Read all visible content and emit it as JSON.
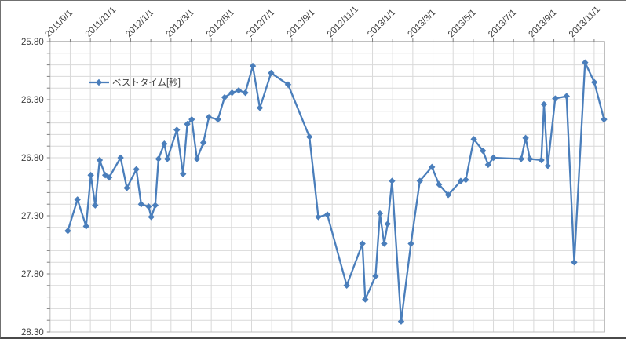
{
  "chart_data": {
    "type": "line",
    "title": "",
    "legend_label": "ベストタイム[秒]",
    "x_axis": {
      "position": "top",
      "tick_labels": [
        "2011/9/1",
        "2011/11/1",
        "2012/1/1",
        "2012/3/1",
        "2012/5/1",
        "2012/7/1",
        "2012/9/1",
        "2012/11/1",
        "2013/1/1",
        "2013/3/1",
        "2013/5/1",
        "2013/7/1",
        "2013/9/1",
        "2013/11/1"
      ],
      "tick_interval_months": 2,
      "gridline_interval_months": 1,
      "label_rotation_deg": 45,
      "axis_span_months": 27.6,
      "x_unit": "months since 2011/9/1"
    },
    "y_axis": {
      "unit": "seconds",
      "min": 25.8,
      "max": 28.3,
      "tick_labels": [
        "25.80",
        "26.30",
        "26.80",
        "27.30",
        "27.80",
        "28.30"
      ],
      "major_step": 0.5,
      "minor_step": 0.1,
      "reversed": true
    },
    "series": [
      {
        "name": "ベストタイム[秒]",
        "color": "#4A7EBB",
        "points": [
          [
            0.88,
            27.43
          ],
          [
            1.36,
            27.16
          ],
          [
            1.79,
            27.39
          ],
          [
            2.02,
            26.95
          ],
          [
            2.24,
            27.21
          ],
          [
            2.46,
            26.82
          ],
          [
            2.74,
            26.95
          ],
          [
            2.93,
            26.97
          ],
          [
            3.5,
            26.8
          ],
          [
            3.81,
            27.06
          ],
          [
            4.28,
            26.9
          ],
          [
            4.52,
            27.2
          ],
          [
            4.89,
            27.22
          ],
          [
            5.02,
            27.31
          ],
          [
            5.22,
            27.21
          ],
          [
            5.38,
            26.81
          ],
          [
            5.67,
            26.68
          ],
          [
            5.82,
            26.81
          ],
          [
            6.29,
            26.56
          ],
          [
            6.6,
            26.94
          ],
          [
            6.81,
            26.51
          ],
          [
            7.03,
            26.47
          ],
          [
            7.29,
            26.81
          ],
          [
            7.61,
            26.67
          ],
          [
            7.88,
            26.45
          ],
          [
            8.33,
            26.47
          ],
          [
            8.66,
            26.28
          ],
          [
            9.03,
            26.24
          ],
          [
            9.36,
            26.22
          ],
          [
            9.69,
            26.24
          ],
          [
            10.06,
            26.01
          ],
          [
            10.41,
            26.37
          ],
          [
            10.97,
            26.07
          ],
          [
            11.81,
            26.17
          ],
          [
            12.87,
            26.62
          ],
          [
            13.31,
            27.31
          ],
          [
            13.76,
            27.29
          ],
          [
            14.72,
            27.9
          ],
          [
            15.5,
            27.54
          ],
          [
            15.64,
            28.02
          ],
          [
            16.15,
            27.82
          ],
          [
            16.37,
            27.28
          ],
          [
            16.58,
            27.54
          ],
          [
            16.75,
            27.37
          ],
          [
            16.97,
            27.0
          ],
          [
            17.42,
            28.21
          ],
          [
            17.91,
            27.54
          ],
          [
            18.35,
            27.0
          ],
          [
            18.95,
            26.88
          ],
          [
            19.3,
            27.03
          ],
          [
            19.76,
            27.12
          ],
          [
            20.38,
            27.0
          ],
          [
            20.63,
            26.99
          ],
          [
            21.03,
            26.64
          ],
          [
            21.48,
            26.74
          ],
          [
            21.74,
            26.86
          ],
          [
            22.0,
            26.8
          ],
          [
            23.38,
            26.81
          ],
          [
            23.6,
            26.63
          ],
          [
            23.81,
            26.81
          ],
          [
            24.38,
            26.82
          ],
          [
            24.51,
            26.34
          ],
          [
            24.7,
            26.87
          ],
          [
            25.07,
            26.29
          ],
          [
            25.63,
            26.27
          ],
          [
            26.01,
            27.7
          ],
          [
            26.55,
            25.98
          ],
          [
            27.01,
            26.15
          ],
          [
            27.49,
            26.47
          ]
        ]
      }
    ],
    "colors": {
      "series": "#4A7EBB",
      "gridline": "#D9D9D9",
      "plot_border": "#BFBFBF",
      "axis_line": "#808080",
      "tick": "#808080",
      "label_text": "#404040",
      "background": "#FFFFFF"
    }
  }
}
